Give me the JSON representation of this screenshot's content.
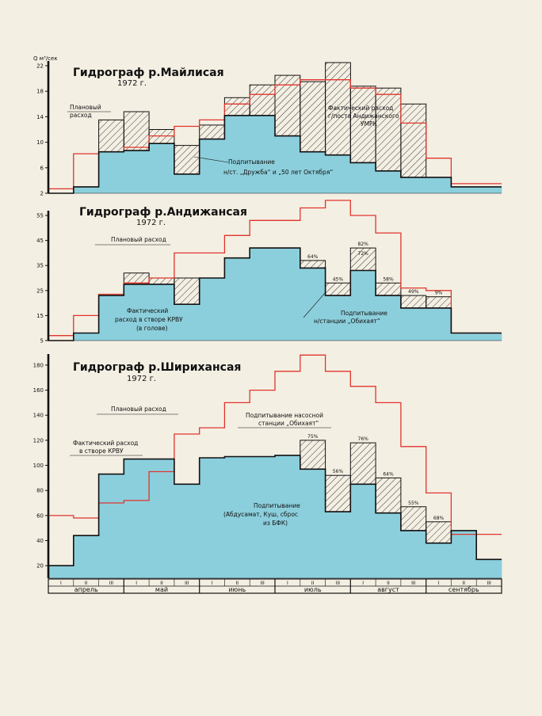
{
  "colors": {
    "paper": "#f4efe3",
    "fill": "#8ccfdc",
    "plan": "#e0342c",
    "ink": "#111111"
  },
  "axis": {
    "months": [
      "апрель",
      "май",
      "июнь",
      "июль",
      "август",
      "сентябрь"
    ],
    "decades": [
      "I",
      "II",
      "III"
    ]
  },
  "chart_data": [
    {
      "id": "c1",
      "type": "step-area",
      "title": "Гидрограф р.Майлисая",
      "year": "1972 г.",
      "unit": "Q м³/сек",
      "ylim": [
        2,
        22
      ],
      "yticks": [
        2,
        6,
        10,
        14,
        18,
        22
      ],
      "periods": [
        "IV-I",
        "IV-II",
        "IV-III",
        "V-I",
        "V-II",
        "V-III",
        "VI-I",
        "VI-II",
        "VI-III",
        "VII-I",
        "VII-II",
        "VII-III",
        "VIII-I",
        "VIII-II",
        "VIII-III",
        "IX-I",
        "IX-II",
        "IX-III"
      ],
      "planned": [
        2.7,
        8.2,
        8.5,
        9.2,
        11.0,
        12.5,
        13.5,
        16.0,
        17.5,
        19.0,
        19.8,
        19.8,
        18.5,
        17.5,
        13.0,
        7.5,
        3.5,
        3.5
      ],
      "actual": [
        2.0,
        3.0,
        8.5,
        8.7,
        9.8,
        5.0,
        10.5,
        14.2,
        14.2,
        11.0,
        8.5,
        8.0,
        6.8,
        5.5,
        4.5,
        4.5,
        3.0,
        3.0
      ],
      "hatch": [
        null,
        null,
        [
          8.5,
          13.5
        ],
        [
          8.7,
          14.8
        ],
        [
          9.8,
          12.0
        ],
        [
          5.0,
          9.5
        ],
        [
          10.5,
          12.7
        ],
        [
          14.2,
          17.0
        ],
        [
          14.2,
          19.0
        ],
        [
          11.0,
          20.5
        ],
        [
          8.5,
          19.5
        ],
        [
          8.0,
          22.5
        ],
        [
          6.8,
          18.8
        ],
        [
          5.5,
          18.5
        ],
        [
          4.5,
          16.0
        ],
        null,
        null,
        null
      ],
      "notes": [
        {
          "id": "plan",
          "text": [
            "Плановый",
            "расход"
          ]
        },
        {
          "id": "actual",
          "text": [
            "Фактический расход",
            "г/поста Андижанского",
            "УМРК"
          ]
        },
        {
          "id": "feed",
          "text": [
            "Подпитывание",
            "н/ст. „Дружба“ и „50 лет Октября“"
          ]
        }
      ],
      "percents": []
    },
    {
      "id": "c2",
      "type": "step-area",
      "title": "Гидрограф р.Андижансая",
      "year": "1972 г.",
      "unit": "",
      "ylim": [
        5,
        55
      ],
      "yticks": [
        5,
        15,
        25,
        35,
        45,
        55
      ],
      "periods": [
        "IV-I",
        "IV-II",
        "IV-III",
        "V-I",
        "V-II",
        "V-III",
        "VI-I",
        "VI-II",
        "VI-III",
        "VII-I",
        "VII-II",
        "VII-III",
        "VIII-I",
        "VIII-II",
        "VIII-III",
        "IX-I",
        "IX-II",
        "IX-III"
      ],
      "planned": [
        7,
        15,
        23.5,
        28,
        30,
        40,
        40,
        47,
        53,
        53,
        58,
        61,
        55,
        48,
        26,
        25,
        8,
        8
      ],
      "actual": [
        5.0,
        8.0,
        23.0,
        27.5,
        27.5,
        19.5,
        30,
        38,
        42,
        42,
        34,
        23,
        33,
        23,
        18,
        18,
        8,
        8
      ],
      "hatch": [
        null,
        null,
        null,
        [
          27.5,
          32
        ],
        [
          27.5,
          30
        ],
        [
          19.5,
          30
        ],
        null,
        null,
        null,
        null,
        [
          34,
          37
        ],
        [
          23,
          28
        ],
        [
          33,
          42
        ],
        [
          23,
          28
        ],
        [
          18,
          23
        ],
        [
          18,
          22.5
        ],
        null,
        null
      ],
      "notes": [
        {
          "id": "plan",
          "text": [
            "Плановый расход"
          ]
        },
        {
          "id": "actual",
          "text": [
            "Фактический",
            "расход в створе КРВУ",
            "(в голове)"
          ]
        },
        {
          "id": "feed",
          "text": [
            "Подпитывание",
            "н/станции „Обихаят“"
          ]
        }
      ],
      "percents": [
        {
          "label": "64%",
          "period": 10
        },
        {
          "label": "45%",
          "period": 11
        },
        {
          "label": "82%",
          "period": 12
        },
        {
          "label": "72%",
          "period": 12
        },
        {
          "label": "58%",
          "period": 13
        },
        {
          "label": "49%",
          "period": 14
        },
        {
          "label": "9%",
          "period": 15
        }
      ]
    },
    {
      "id": "c3",
      "type": "step-area",
      "title": "Гидрограф р.Ширихансая",
      "year": "1972 г.",
      "unit": "",
      "ylim": [
        10,
        185
      ],
      "yticks": [
        20,
        40,
        60,
        80,
        100,
        120,
        140,
        160,
        180
      ],
      "periods": [
        "IV-I",
        "IV-II",
        "IV-III",
        "V-I",
        "V-II",
        "V-III",
        "VI-I",
        "VI-II",
        "VI-III",
        "VII-I",
        "VII-II",
        "VII-III",
        "VIII-I",
        "VIII-II",
        "VIII-III",
        "IX-I",
        "IX-II",
        "IX-III"
      ],
      "planned": [
        60,
        58,
        70,
        72,
        95,
        125,
        130,
        150,
        160,
        175,
        188,
        175,
        163,
        150,
        115,
        78,
        45,
        45
      ],
      "actual": [
        20,
        44,
        93,
        105,
        105,
        85,
        106,
        107,
        107,
        108,
        97,
        63,
        85,
        62,
        48,
        38,
        48,
        25
      ],
      "hatch": [
        null,
        null,
        null,
        null,
        null,
        null,
        null,
        null,
        null,
        null,
        [
          97,
          120
        ],
        [
          63,
          92
        ],
        [
          85,
          118
        ],
        [
          62,
          90
        ],
        [
          48,
          67
        ],
        [
          38,
          55
        ],
        null,
        null
      ],
      "notes": [
        {
          "id": "plan",
          "text": [
            "Плановый расход"
          ]
        },
        {
          "id": "actual",
          "text": [
            "Фактический расход",
            "в створе КРВУ"
          ]
        },
        {
          "id": "pump",
          "text": [
            "Подпитывание насосной",
            "станции „Обихаят“"
          ]
        },
        {
          "id": "feed",
          "text": [
            "Подпитывание",
            "(Абдусамат, Куш, сброс",
            "из БФК)"
          ]
        }
      ],
      "percents": [
        {
          "label": "75%",
          "period": 10
        },
        {
          "label": "56%",
          "period": 11
        },
        {
          "label": "76%",
          "period": 12
        },
        {
          "label": "64%",
          "period": 13
        },
        {
          "label": "55%",
          "period": 14
        },
        {
          "label": "68%",
          "period": 15
        }
      ]
    }
  ]
}
